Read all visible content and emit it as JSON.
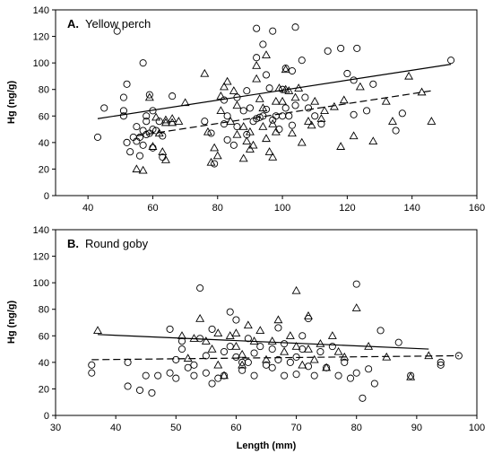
{
  "chart_data": [
    {
      "type": "scatter",
      "panel_label": "A.",
      "panel_title": "Yellow perch",
      "xlabel": "",
      "ylabel": "Hg (ng/g)",
      "xlim": [
        30,
        160
      ],
      "ylim": [
        0,
        140
      ],
      "xticks": [
        40,
        60,
        80,
        100,
        120,
        140,
        160
      ],
      "yticks": [
        0,
        20,
        40,
        60,
        80,
        100,
        120,
        140
      ],
      "grid": false,
      "series": [
        {
          "marker": "circle",
          "x": [
            43,
            45,
            49,
            51,
            51,
            51,
            52,
            52,
            53,
            54,
            55,
            55,
            56,
            56,
            57,
            57,
            57,
            58,
            58,
            58,
            59,
            59,
            60,
            60,
            60,
            61,
            62,
            63,
            63,
            66,
            76,
            78,
            79,
            82,
            82,
            83,
            83,
            85,
            86,
            86,
            88,
            89,
            89,
            90,
            91,
            92,
            92,
            92,
            93,
            94,
            94,
            95,
            95,
            96,
            97,
            97,
            98,
            99,
            100,
            100,
            101,
            101,
            102,
            103,
            103,
            104,
            104,
            106,
            107,
            108,
            110,
            112,
            114,
            118,
            120,
            122,
            122,
            123,
            126,
            128,
            135,
            137,
            152
          ],
          "y": [
            44,
            66,
            124,
            60,
            64,
            74,
            40,
            84,
            33,
            44,
            52,
            41,
            30,
            44,
            38,
            100,
            49,
            60,
            46,
            56,
            47,
            76,
            64,
            50,
            36,
            49,
            56,
            45,
            29,
            75,
            56,
            47,
            24,
            54,
            72,
            60,
            42,
            38,
            74,
            52,
            64,
            79,
            46,
            66,
            56,
            126,
            104,
            58,
            59,
            60,
            114,
            91,
            65,
            81,
            57,
            124,
            60,
            50,
            60,
            80,
            66,
            96,
            60,
            94,
            53,
            68,
            127,
            102,
            74,
            66,
            60,
            54,
            109,
            111,
            92,
            87,
            61,
            111,
            64,
            84,
            49,
            62,
            102
          ]
        },
        {
          "marker": "triangle",
          "x": [
            55,
            57,
            59,
            60,
            61,
            62,
            63,
            64,
            64,
            64,
            66,
            66,
            68,
            70,
            76,
            77,
            78,
            79,
            80,
            81,
            81,
            82,
            83,
            84,
            85,
            86,
            86,
            88,
            88,
            89,
            90,
            90,
            91,
            92,
            92,
            93,
            94,
            94,
            95,
            95,
            96,
            97,
            97,
            98,
            98,
            99,
            100,
            101,
            101,
            102,
            103,
            104,
            105,
            106,
            108,
            109,
            110,
            112,
            113,
            116,
            118,
            119,
            122,
            124,
            128,
            132,
            134,
            139,
            143,
            146
          ],
          "y": [
            20,
            19,
            74,
            37,
            59,
            47,
            33,
            57,
            55,
            27,
            55,
            58,
            56,
            70,
            92,
            48,
            25,
            36,
            30,
            75,
            64,
            82,
            86,
            56,
            79,
            68,
            46,
            52,
            28,
            41,
            35,
            48,
            38,
            98,
            88,
            73,
            66,
            52,
            43,
            106,
            33,
            29,
            54,
            48,
            71,
            81,
            71,
            95,
            80,
            79,
            47,
            74,
            81,
            40,
            56,
            53,
            71,
            58,
            64,
            67,
            37,
            72,
            45,
            82,
            41,
            71,
            56,
            90,
            78,
            56
          ]
        }
      ],
      "trend_lines": [
        {
          "style": "solid",
          "x": [
            43,
            152
          ],
          "y": [
            58,
            99
          ]
        },
        {
          "style": "dashed",
          "x": [
            55,
            146
          ],
          "y": [
            45,
            79
          ]
        }
      ]
    },
    {
      "type": "scatter",
      "panel_label": "B.",
      "panel_title": "Round goby",
      "xlabel": "Length (mm)",
      "ylabel": "Hg (ng/g)",
      "xlim": [
        30,
        100
      ],
      "ylim": [
        0,
        140
      ],
      "xticks": [
        30,
        40,
        50,
        60,
        70,
        80,
        90,
        100
      ],
      "yticks": [
        0,
        20,
        40,
        60,
        80,
        100,
        120,
        140
      ],
      "grid": false,
      "series": [
        {
          "marker": "circle",
          "x": [
            36,
            36,
            42,
            42,
            44,
            45,
            46,
            47,
            49,
            49,
            50,
            50,
            51,
            51,
            52,
            53,
            53,
            54,
            54,
            55,
            55,
            56,
            56,
            57,
            58,
            58,
            59,
            59,
            60,
            60,
            61,
            61,
            62,
            62,
            63,
            63,
            64,
            65,
            66,
            66,
            67,
            67,
            68,
            68,
            69,
            70,
            70,
            71,
            71,
            72,
            72,
            73,
            74,
            75,
            76,
            77,
            78,
            79,
            80,
            80,
            81,
            82,
            83,
            84,
            87,
            89,
            94,
            94,
            97
          ],
          "y": [
            32,
            38,
            40,
            22,
            19,
            30,
            17,
            30,
            65,
            32,
            42,
            28,
            56,
            50,
            36,
            30,
            38,
            96,
            58,
            32,
            45,
            24,
            65,
            28,
            48,
            30,
            52,
            78,
            72,
            44,
            34,
            40,
            58,
            40,
            47,
            30,
            52,
            38,
            36,
            50,
            66,
            42,
            30,
            54,
            40,
            44,
            31,
            60,
            50,
            37,
            73,
            30,
            48,
            36,
            52,
            30,
            40,
            28,
            99,
            32,
            13,
            35,
            24,
            64,
            55,
            30,
            38,
            40,
            45
          ]
        },
        {
          "marker": "triangle",
          "x": [
            37,
            51,
            52,
            53,
            54,
            55,
            56,
            57,
            57,
            58,
            59,
            60,
            60,
            61,
            61,
            62,
            63,
            64,
            65,
            66,
            67,
            68,
            69,
            70,
            70,
            71,
            72,
            72,
            73,
            74,
            75,
            76,
            77,
            78,
            80,
            82,
            85,
            89,
            92
          ],
          "y": [
            64,
            60,
            43,
            58,
            73,
            56,
            50,
            62,
            38,
            30,
            60,
            52,
            62,
            46,
            38,
            68,
            56,
            64,
            42,
            56,
            72,
            48,
            60,
            94,
            52,
            38,
            75,
            50,
            42,
            54,
            36,
            60,
            48,
            44,
            81,
            52,
            44,
            29,
            45
          ]
        }
      ],
      "trend_lines": [
        {
          "style": "solid",
          "x": [
            37,
            92
          ],
          "y": [
            61,
            50
          ]
        },
        {
          "style": "dashed",
          "x": [
            36,
            97
          ],
          "y": [
            42,
            45
          ]
        }
      ]
    }
  ]
}
